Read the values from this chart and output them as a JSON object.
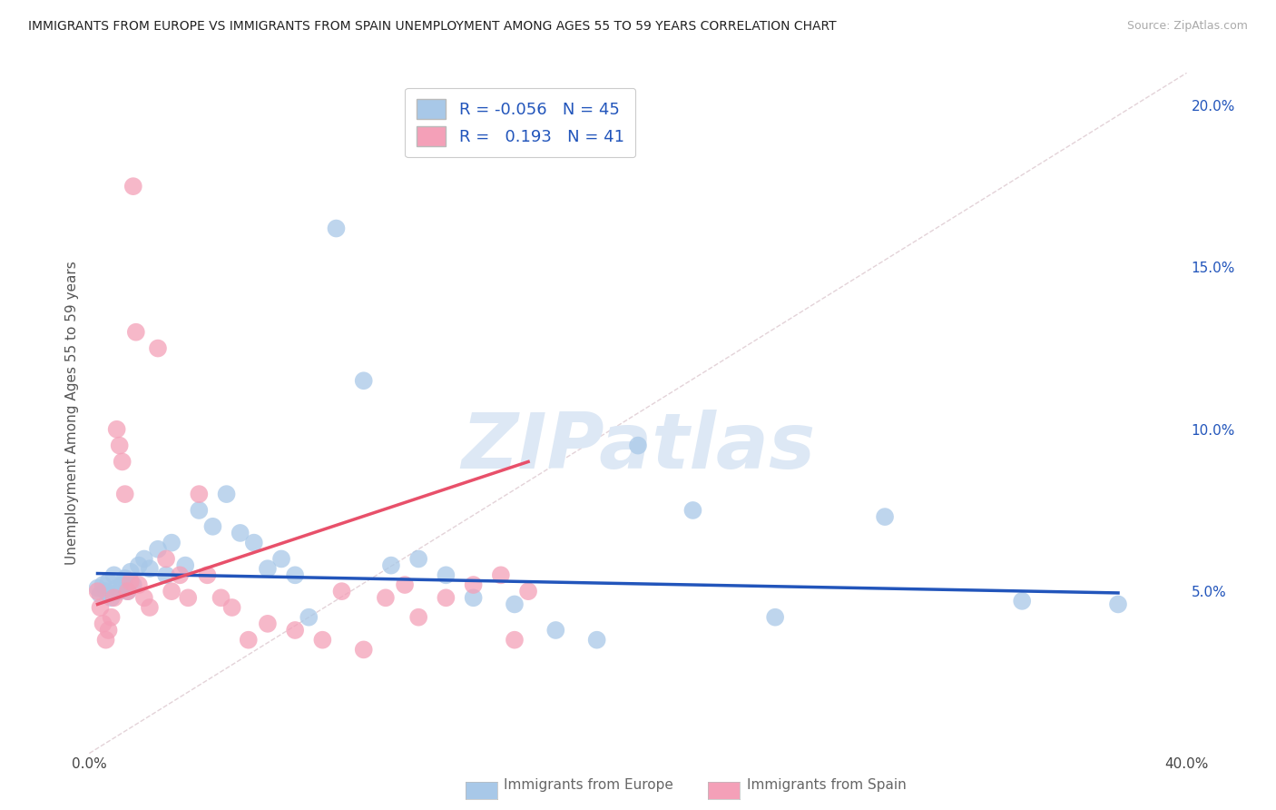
{
  "title": "IMMIGRANTS FROM EUROPE VS IMMIGRANTS FROM SPAIN UNEMPLOYMENT AMONG AGES 55 TO 59 YEARS CORRELATION CHART",
  "source": "Source: ZipAtlas.com",
  "ylabel": "Unemployment Among Ages 55 to 59 years",
  "xlim": [
    0.0,
    0.4
  ],
  "ylim": [
    0.0,
    0.21
  ],
  "xticks": [
    0.0,
    0.05,
    0.1,
    0.15,
    0.2,
    0.25,
    0.3,
    0.35,
    0.4
  ],
  "xticklabels": [
    "0.0%",
    "",
    "",
    "",
    "",
    "",
    "",
    "",
    "40.0%"
  ],
  "ytick_positions": [
    0.05,
    0.1,
    0.15,
    0.2
  ],
  "ytick_labels": [
    "5.0%",
    "10.0%",
    "15.0%",
    "20.0%"
  ],
  "europe_R": -0.056,
  "europe_N": 45,
  "spain_R": 0.193,
  "spain_N": 41,
  "europe_color": "#a8c8e8",
  "spain_color": "#f4a0b8",
  "europe_line_color": "#2255bb",
  "spain_line_color": "#e8506a",
  "background_color": "#ffffff",
  "grid_color": "#dddddd",
  "title_color": "#222222",
  "legend_text_color": "#2255bb",
  "watermark_color": "#dde8f5",
  "europe_x": [
    0.003,
    0.004,
    0.005,
    0.006,
    0.007,
    0.008,
    0.009,
    0.01,
    0.011,
    0.012,
    0.013,
    0.014,
    0.015,
    0.016,
    0.018,
    0.02,
    0.022,
    0.025,
    0.028,
    0.03,
    0.035,
    0.04,
    0.045,
    0.05,
    0.055,
    0.06,
    0.065,
    0.07,
    0.075,
    0.08,
    0.09,
    0.1,
    0.11,
    0.12,
    0.13,
    0.14,
    0.155,
    0.17,
    0.185,
    0.2,
    0.22,
    0.25,
    0.29,
    0.34,
    0.375
  ],
  "europe_y": [
    0.051,
    0.049,
    0.052,
    0.05,
    0.053,
    0.048,
    0.055,
    0.051,
    0.05,
    0.052,
    0.054,
    0.05,
    0.056,
    0.052,
    0.058,
    0.06,
    0.057,
    0.063,
    0.055,
    0.065,
    0.058,
    0.075,
    0.07,
    0.08,
    0.068,
    0.065,
    0.057,
    0.06,
    0.055,
    0.042,
    0.162,
    0.115,
    0.058,
    0.06,
    0.055,
    0.048,
    0.046,
    0.038,
    0.035,
    0.095,
    0.075,
    0.042,
    0.073,
    0.047,
    0.046
  ],
  "spain_x": [
    0.003,
    0.004,
    0.005,
    0.006,
    0.007,
    0.008,
    0.009,
    0.01,
    0.011,
    0.012,
    0.013,
    0.014,
    0.015,
    0.016,
    0.017,
    0.018,
    0.02,
    0.022,
    0.025,
    0.028,
    0.03,
    0.033,
    0.036,
    0.04,
    0.043,
    0.048,
    0.052,
    0.058,
    0.065,
    0.075,
    0.085,
    0.092,
    0.1,
    0.108,
    0.115,
    0.12,
    0.13,
    0.14,
    0.15,
    0.155,
    0.16
  ],
  "spain_y": [
    0.05,
    0.045,
    0.04,
    0.035,
    0.038,
    0.042,
    0.048,
    0.1,
    0.095,
    0.09,
    0.08,
    0.05,
    0.053,
    0.175,
    0.13,
    0.052,
    0.048,
    0.045,
    0.125,
    0.06,
    0.05,
    0.055,
    0.048,
    0.08,
    0.055,
    0.048,
    0.045,
    0.035,
    0.04,
    0.038,
    0.035,
    0.05,
    0.032,
    0.048,
    0.052,
    0.042,
    0.048,
    0.052,
    0.055,
    0.035,
    0.05
  ]
}
